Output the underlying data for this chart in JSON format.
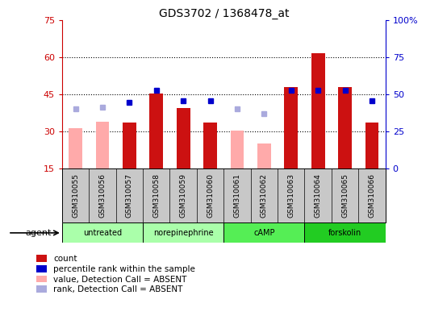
{
  "title": "GDS3702 / 1368478_at",
  "samples": [
    "GSM310055",
    "GSM310056",
    "GSM310057",
    "GSM310058",
    "GSM310059",
    "GSM310060",
    "GSM310061",
    "GSM310062",
    "GSM310063",
    "GSM310064",
    "GSM310065",
    "GSM310066"
  ],
  "group_configs": [
    {
      "label": "untreated",
      "start": 0,
      "end": 3,
      "color": "#aaffaa"
    },
    {
      "label": "norepinephrine",
      "start": 3,
      "end": 6,
      "color": "#aaffaa"
    },
    {
      "label": "cAMP",
      "start": 6,
      "end": 9,
      "color": "#55ee55"
    },
    {
      "label": "forskolin",
      "start": 9,
      "end": 12,
      "color": "#22cc22"
    }
  ],
  "red_bars": [
    null,
    null,
    33.5,
    45.5,
    39.5,
    33.5,
    null,
    null,
    48.0,
    61.5,
    48.0,
    33.5
  ],
  "pink_bars": [
    31.5,
    34.0,
    null,
    null,
    null,
    null,
    30.5,
    25.0,
    null,
    null,
    null,
    null
  ],
  "blue_squares": [
    null,
    null,
    44.5,
    52.5,
    45.5,
    45.5,
    null,
    null,
    52.5,
    53.0,
    52.5,
    45.5
  ],
  "lavender_squares": [
    40.0,
    41.5,
    null,
    null,
    null,
    null,
    40.5,
    37.0,
    null,
    null,
    null,
    null
  ],
  "ylim_left": [
    15,
    75
  ],
  "ylim_right": [
    0,
    100
  ],
  "yticks_left": [
    15,
    30,
    45,
    60,
    75
  ],
  "yticks_right": [
    0,
    25,
    50,
    75,
    100
  ],
  "ytick_labels_right": [
    "0",
    "25",
    "50",
    "75",
    "100%"
  ],
  "left_axis_color": "#cc0000",
  "right_axis_color": "#0000cc",
  "bar_width": 0.5,
  "bar_red_color": "#cc1111",
  "bar_pink_color": "#ffaaaa",
  "square_blue_color": "#0000cc",
  "square_lavender_color": "#aaaadd",
  "hgrid_lines": [
    30,
    45,
    60
  ],
  "legend_items": [
    {
      "color": "#cc1111",
      "label": "count"
    },
    {
      "color": "#0000cc",
      "label": "percentile rank within the sample"
    },
    {
      "color": "#ffaaaa",
      "label": "value, Detection Call = ABSENT"
    },
    {
      "color": "#aaaadd",
      "label": "rank, Detection Call = ABSENT"
    }
  ],
  "agent_label": "agent"
}
